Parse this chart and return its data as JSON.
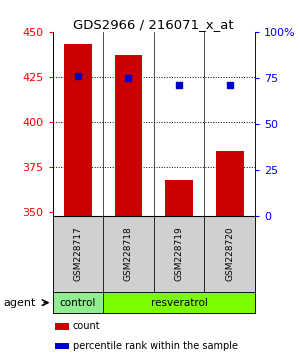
{
  "title": "GDS2966 / 216071_x_at",
  "samples": [
    "GSM228717",
    "GSM228718",
    "GSM228719",
    "GSM228720"
  ],
  "bar_values": [
    443,
    437,
    368,
    384
  ],
  "percentile_values": [
    76,
    75,
    71,
    71
  ],
  "bar_color": "#cc0000",
  "dot_color": "#0000cc",
  "ylim_left": [
    348,
    450
  ],
  "ylim_right": [
    0,
    100
  ],
  "yticks_left": [
    350,
    375,
    400,
    425,
    450
  ],
  "yticks_right": [
    0,
    25,
    50,
    75,
    100
  ],
  "yticklabels_right": [
    "0",
    "25",
    "50",
    "75",
    "100%"
  ],
  "grid_ticks": [
    375,
    400,
    425
  ],
  "agent_label": "agent",
  "legend_items": [
    {
      "color": "#cc0000",
      "label": "count"
    },
    {
      "color": "#0000cc",
      "label": "percentile rank within the sample"
    }
  ],
  "bar_width": 0.55,
  "background_color": "#ffffff",
  "sample_box_color": "#d0d0d0",
  "control_color": "#90ee90",
  "resveratrol_color": "#7cfc00",
  "group_spans": [
    {
      "label": "control",
      "start": 0,
      "end": 0
    },
    {
      "label": "resveratrol",
      "start": 1,
      "end": 3
    }
  ]
}
